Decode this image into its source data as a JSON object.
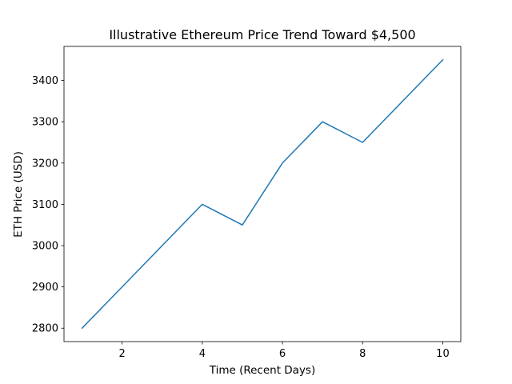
{
  "chart_data": {
    "type": "line",
    "title": "Illustrative Ethereum Price Trend Toward $4,500",
    "xlabel": "Time (Recent Days)",
    "ylabel": "ETH Price (USD)",
    "x": [
      1,
      2,
      3,
      4,
      5,
      6,
      7,
      8,
      9,
      10
    ],
    "series": [
      {
        "values": [
          2800,
          2900,
          3000,
          3100,
          3050,
          3200,
          3300,
          3250,
          3350,
          3450
        ],
        "color": "#1f77b4"
      }
    ],
    "xlim": [
      0.55,
      10.45
    ],
    "ylim": [
      2767.5,
      3482.5
    ],
    "xticks": [
      2,
      4,
      6,
      8,
      10
    ],
    "xtick_labels": [
      "2",
      "4",
      "6",
      "8",
      "10"
    ],
    "yticks": [
      2800,
      2900,
      3000,
      3100,
      3200,
      3300,
      3400
    ],
    "ytick_labels": [
      "2800",
      "2900",
      "3000",
      "3100",
      "3200",
      "3300",
      "3400"
    ],
    "grid": false,
    "legend": false
  }
}
